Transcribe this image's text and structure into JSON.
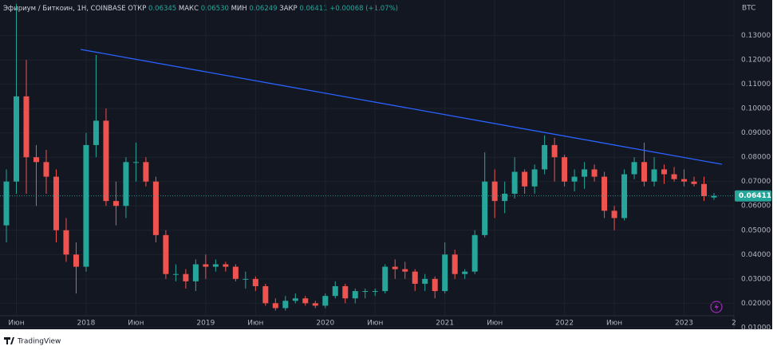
{
  "chart_data": {
    "type": "candlestick",
    "title": "Эфириум / Биткоин, 1H, COINBASE",
    "ohlc_legend": [
      {
        "label": "ОТКР",
        "value": "0.06345"
      },
      {
        "label": "МАКС",
        "value": "0.06530"
      },
      {
        "label": "МИН",
        "value": "0.06249"
      },
      {
        "label": "ЗАКР",
        "value": "0.06411"
      }
    ],
    "change": "+0.00068 (+1.07%)",
    "y_axis_label": "BTC",
    "brand": "TradingView",
    "up_color": "#26a69a",
    "down_color": "#ef5350",
    "candles": {
      "x": [
        4,
        5,
        6,
        7,
        8,
        9,
        10,
        11,
        12,
        13,
        14,
        15,
        16,
        17,
        18,
        19,
        20,
        21,
        22,
        23,
        24,
        25,
        26,
        27,
        28,
        29,
        30,
        31,
        32,
        33,
        34,
        35,
        36,
        37,
        38,
        39,
        40,
        41,
        42,
        43,
        44,
        45,
        46,
        47,
        48,
        49,
        50,
        51,
        52,
        53,
        54,
        55,
        56,
        57,
        58,
        59,
        60,
        61,
        62,
        63,
        64,
        65,
        66,
        67,
        68,
        69,
        70,
        71,
        72,
        73,
        74,
        75
      ],
      "open": [
        0.052,
        0.07,
        0.105,
        0.08,
        0.078,
        0.072,
        0.05,
        0.04,
        0.035,
        0.085,
        0.095,
        0.062,
        0.06,
        0.078,
        0.078,
        0.07,
        0.048,
        0.032,
        0.032,
        0.029,
        0.036,
        0.035,
        0.036,
        0.035,
        0.03,
        0.03,
        0.027,
        0.02,
        0.018,
        0.021,
        0.022,
        0.02,
        0.019,
        0.023,
        0.027,
        0.022,
        0.025,
        0.025,
        0.025,
        0.035,
        0.034,
        0.033,
        0.028,
        0.03,
        0.025,
        0.04,
        0.032,
        0.033,
        0.048,
        0.07,
        0.062,
        0.065,
        0.074,
        0.068,
        0.075,
        0.085,
        0.08,
        0.07,
        0.072,
        0.075,
        0.072,
        0.058,
        0.055,
        0.073,
        0.078,
        0.07,
        0.075,
        0.073,
        0.071,
        0.07,
        0.069,
        0.06345
      ],
      "high": [
        0.075,
        0.143,
        0.12,
        0.085,
        0.083,
        0.075,
        0.055,
        0.045,
        0.09,
        0.122,
        0.1,
        0.07,
        0.08,
        0.086,
        0.08,
        0.072,
        0.05,
        0.036,
        0.034,
        0.038,
        0.04,
        0.038,
        0.037,
        0.036,
        0.033,
        0.031,
        0.028,
        0.022,
        0.023,
        0.024,
        0.023,
        0.021,
        0.024,
        0.029,
        0.028,
        0.026,
        0.026,
        0.026,
        0.036,
        0.038,
        0.037,
        0.034,
        0.032,
        0.031,
        0.045,
        0.042,
        0.034,
        0.05,
        0.082,
        0.075,
        0.07,
        0.08,
        0.075,
        0.077,
        0.089,
        0.088,
        0.081,
        0.075,
        0.078,
        0.077,
        0.074,
        0.06,
        0.075,
        0.08,
        0.086,
        0.08,
        0.077,
        0.076,
        0.075,
        0.072,
        0.072,
        0.0653
      ],
      "low": [
        0.045,
        0.065,
        0.065,
        0.06,
        0.065,
        0.045,
        0.037,
        0.024,
        0.033,
        0.08,
        0.06,
        0.052,
        0.055,
        0.07,
        0.068,
        0.045,
        0.03,
        0.029,
        0.026,
        0.025,
        0.03,
        0.033,
        0.033,
        0.029,
        0.026,
        0.025,
        0.019,
        0.017,
        0.017,
        0.02,
        0.019,
        0.018,
        0.018,
        0.022,
        0.02,
        0.02,
        0.022,
        0.023,
        0.024,
        0.03,
        0.03,
        0.025,
        0.025,
        0.022,
        0.024,
        0.03,
        0.03,
        0.032,
        0.047,
        0.055,
        0.057,
        0.063,
        0.065,
        0.065,
        0.073,
        0.07,
        0.068,
        0.066,
        0.067,
        0.07,
        0.055,
        0.05,
        0.054,
        0.071,
        0.068,
        0.068,
        0.069,
        0.07,
        0.068,
        0.068,
        0.062,
        0.06249
      ],
      "close": [
        0.07,
        0.105,
        0.08,
        0.078,
        0.072,
        0.05,
        0.04,
        0.035,
        0.085,
        0.095,
        0.062,
        0.06,
        0.078,
        0.078,
        0.07,
        0.048,
        0.032,
        0.032,
        0.029,
        0.036,
        0.035,
        0.036,
        0.035,
        0.03,
        0.03,
        0.027,
        0.02,
        0.018,
        0.021,
        0.022,
        0.02,
        0.019,
        0.023,
        0.027,
        0.022,
        0.025,
        0.025,
        0.025,
        0.035,
        0.034,
        0.033,
        0.028,
        0.03,
        0.025,
        0.04,
        0.032,
        0.033,
        0.048,
        0.07,
        0.062,
        0.065,
        0.074,
        0.068,
        0.075,
        0.085,
        0.08,
        0.07,
        0.072,
        0.075,
        0.072,
        0.058,
        0.055,
        0.073,
        0.078,
        0.07,
        0.075,
        0.073,
        0.071,
        0.07,
        0.069,
        0.064,
        0.06411
      ]
    },
    "trendline": {
      "x": [
        11.45,
        75.8
      ],
      "y": [
        0.1243,
        0.0771
      ],
      "color": "#2962ff"
    },
    "xlim": [
      4,
      77
    ],
    "ylim": [
      0.0093,
      0.1446
    ],
    "xticks": [
      {
        "value": 5,
        "label": "Июн"
      },
      {
        "value": 12,
        "label": "2018"
      },
      {
        "value": 17,
        "label": "Июн"
      },
      {
        "value": 24,
        "label": "2019"
      },
      {
        "value": 29,
        "label": "Июн"
      },
      {
        "value": 36,
        "label": "2020"
      },
      {
        "value": 41,
        "label": "Июн"
      },
      {
        "value": 48,
        "label": "2021"
      },
      {
        "value": 53,
        "label": "Июн"
      },
      {
        "value": 60,
        "label": "2022"
      },
      {
        "value": 65,
        "label": "Июн"
      },
      {
        "value": 72,
        "label": "2023"
      },
      {
        "value": 77,
        "label": "2"
      }
    ],
    "yticks": [
      {
        "value": 0.01,
        "label": "0.01000"
      },
      {
        "value": 0.02,
        "label": "0.02000"
      },
      {
        "value": 0.03,
        "label": "0.03000"
      },
      {
        "value": 0.04,
        "label": "0.04000"
      },
      {
        "value": 0.05,
        "label": "0.05000"
      },
      {
        "value": 0.06,
        "label": "0.06000"
      },
      {
        "value": 0.07,
        "label": "0.07000"
      },
      {
        "value": 0.08,
        "label": "0.08000"
      },
      {
        "value": 0.09,
        "label": "0.09000"
      },
      {
        "value": 0.1,
        "label": "0.10000"
      },
      {
        "value": 0.11,
        "label": "0.11000"
      },
      {
        "value": 0.12,
        "label": "0.12000"
      },
      {
        "value": 0.13,
        "label": "0.13000"
      }
    ],
    "grid": true
  }
}
